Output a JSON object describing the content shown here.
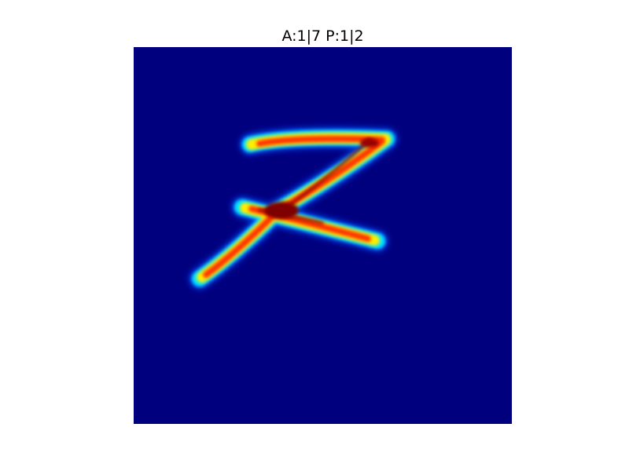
{
  "figure": {
    "title": "A:1|7 P:1|2"
  },
  "image": {
    "colormap": "jet",
    "depicted_digit": "7",
    "colors": {
      "background": "#00007f",
      "cold": "#0000ff",
      "cool": "#00ffff",
      "warm": "#ffff00",
      "hot": "#ff0000",
      "peak": "#7f0000"
    }
  }
}
